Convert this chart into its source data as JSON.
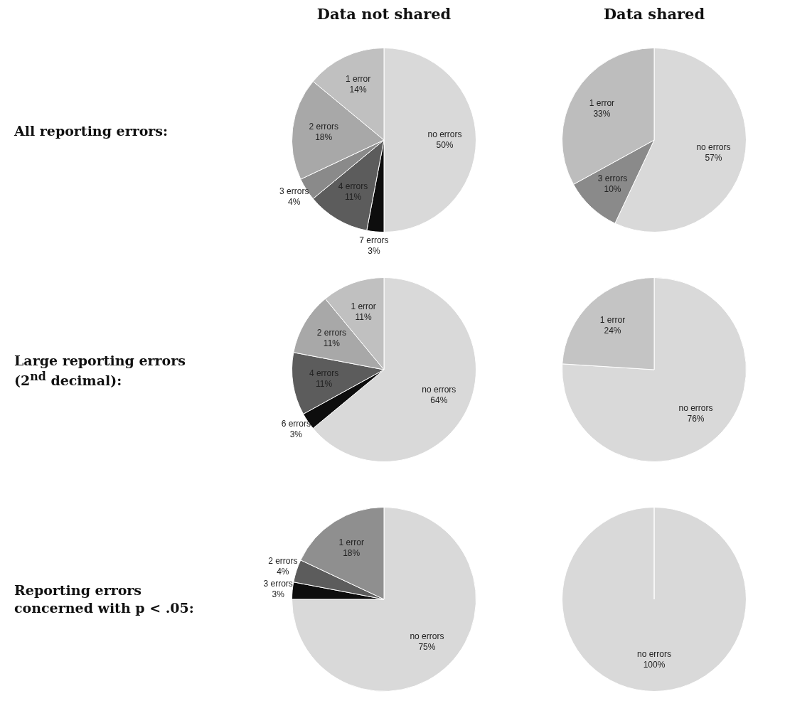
{
  "chart_data": [
    {
      "type": "pie",
      "title": "Data not shared",
      "ylabel": "All reporting errors:",
      "categories": [
        "no errors",
        "7 errors",
        "4 errors",
        "3 errors",
        "2 errors",
        "1 error"
      ],
      "values": [
        50,
        3,
        11,
        4,
        18,
        14
      ],
      "value_labels": [
        "50%",
        "3%",
        "11%",
        "4%",
        "18%",
        "14%"
      ],
      "colors": [
        "#d9d9d9",
        "#0d0d0d",
        "#5c5c5c",
        "#8a8a8a",
        "#a8a8a8",
        "#c0c0c0"
      ]
    },
    {
      "type": "pie",
      "title": "Data shared",
      "categories": [
        "no errors",
        "3 errors",
        "1 error"
      ],
      "values": [
        57,
        10,
        33
      ],
      "value_labels": [
        "57%",
        "10%",
        "33%"
      ],
      "colors": [
        "#d9d9d9",
        "#8a8a8a",
        "#bdbdbd"
      ]
    },
    {
      "type": "pie",
      "ylabel": "Large reporting errors (2$^{nd}$ decimal):",
      "categories": [
        "no errors",
        "6 errors",
        "4 errors",
        "2 errors",
        "1 error"
      ],
      "values": [
        64,
        3,
        11,
        11,
        11
      ],
      "value_labels": [
        "64%",
        "3%",
        "11%",
        "11%",
        "11%"
      ],
      "colors": [
        "#d9d9d9",
        "#0d0d0d",
        "#5c5c5c",
        "#a8a8a8",
        "#c0c0c0"
      ]
    },
    {
      "type": "pie",
      "categories": [
        "no errors",
        "1 error"
      ],
      "values": [
        76,
        24
      ],
      "value_labels": [
        "76%",
        "24%"
      ],
      "colors": [
        "#d9d9d9",
        "#c4c4c4"
      ]
    },
    {
      "type": "pie",
      "ylabel": "Reporting errors concerned with p < .05:",
      "categories": [
        "no errors",
        "3 errors",
        "2 errors",
        "1 error"
      ],
      "values": [
        75,
        3,
        4,
        18
      ],
      "value_labels": [
        "75%",
        "3%",
        "4%",
        "18%"
      ],
      "colors": [
        "#d9d9d9",
        "#0d0d0d",
        "#5c5c5c",
        "#8f8f8f"
      ]
    },
    {
      "type": "pie",
      "categories": [
        "no errors"
      ],
      "values": [
        100
      ],
      "value_labels": [
        "100%"
      ],
      "colors": [
        "#d9d9d9"
      ]
    }
  ]
}
